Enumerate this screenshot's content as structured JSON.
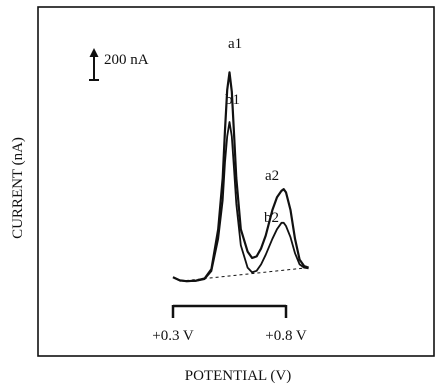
{
  "chart_data": {
    "type": "line",
    "title": "",
    "xlabel": "POTENTIAL (V)",
    "ylabel": "CURRENT (nA)",
    "x_unit": "V",
    "scale_bar": {
      "label": "200 nA",
      "value": 200,
      "unit": "nA"
    },
    "potential_bracket": {
      "start": 0.3,
      "end": 0.8,
      "start_label": "+0.3 V",
      "end_label": "+0.8 V"
    },
    "peak_labels": [
      {
        "text": "a1",
        "series": "a",
        "x": 0.55
      },
      {
        "text": "b1",
        "series": "b",
        "x": 0.55
      },
      {
        "text": "a2",
        "series": "a",
        "x": 0.79
      },
      {
        "text": "b2",
        "series": "b",
        "x": 0.79
      }
    ],
    "series": [
      {
        "name": "a",
        "x": [
          0.3,
          0.33,
          0.36,
          0.4,
          0.44,
          0.47,
          0.5,
          0.52,
          0.53,
          0.54,
          0.55,
          0.56,
          0.57,
          0.58,
          0.6,
          0.63,
          0.65,
          0.67,
          0.69,
          0.71,
          0.74,
          0.76,
          0.78,
          0.79,
          0.8,
          0.82,
          0.84,
          0.86,
          0.88,
          0.9
        ],
        "y": [
          80,
          60,
          55,
          58,
          72,
          130,
          380,
          700,
          1000,
          1250,
          1360,
          1240,
          980,
          700,
          380,
          240,
          200,
          210,
          260,
          340,
          500,
          580,
          620,
          630,
          610,
          500,
          320,
          190,
          150,
          140
        ]
      },
      {
        "name": "b",
        "x": [
          0.3,
          0.33,
          0.36,
          0.4,
          0.44,
          0.47,
          0.5,
          0.52,
          0.53,
          0.54,
          0.55,
          0.56,
          0.57,
          0.58,
          0.6,
          0.63,
          0.65,
          0.67,
          0.69,
          0.71,
          0.74,
          0.76,
          0.78,
          0.79,
          0.8,
          0.82,
          0.84,
          0.86,
          0.88,
          0.9
        ],
        "y": [
          80,
          60,
          55,
          56,
          68,
          118,
          320,
          560,
          800,
          960,
          1050,
          960,
          760,
          540,
          280,
          140,
          110,
          120,
          160,
          220,
          320,
          380,
          420,
          420,
          400,
          330,
          230,
          160,
          140,
          135
        ]
      },
      {
        "name": "baseline",
        "x": [
          0.33,
          0.9
        ],
        "y": [
          55,
          140
        ]
      }
    ]
  }
}
